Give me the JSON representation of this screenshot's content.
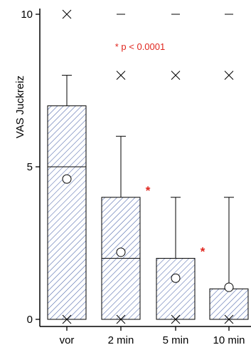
{
  "chart_data": {
    "type": "box",
    "categories": [
      "vor",
      "2 min",
      "5 min",
      "10 min"
    ],
    "ylabel": "VAS Juckreiz",
    "xlabel": "",
    "ylim": [
      0,
      10
    ],
    "yticks": [
      0,
      5,
      10
    ],
    "annotation": "* p < 0.0001",
    "significance_marker": "*",
    "boxes": [
      {
        "category": "vor",
        "min": 0,
        "q1": 0,
        "median": 5,
        "q3": 7,
        "whisker_high": 8,
        "mean": 4.6,
        "outliers_x": [
          10
        ],
        "dash_marks": [],
        "significant": false
      },
      {
        "category": "2 min",
        "min": 0,
        "q1": 0,
        "median": 2,
        "q3": 4,
        "whisker_high": 6,
        "mean": 2.2,
        "outliers_x": [
          8
        ],
        "dash_marks": [
          10
        ],
        "significant": true
      },
      {
        "category": "5 min",
        "min": 0,
        "q1": 0,
        "median": 0,
        "q3": 2,
        "whisker_high": 4,
        "mean": 1.35,
        "outliers_x": [
          8
        ],
        "dash_marks": [
          10
        ],
        "significant": true
      },
      {
        "category": "10 min",
        "min": 0,
        "q1": 0,
        "median": 0,
        "q3": 1,
        "whisker_high": 4,
        "mean": 1.05,
        "outliers_x": [
          8
        ],
        "dash_marks": [
          10
        ],
        "significant": true
      }
    ],
    "colors": {
      "box_hatch": "#4a63a8",
      "box_edge": "#000000",
      "significance": "#e0261e",
      "axis": "#000000"
    }
  }
}
